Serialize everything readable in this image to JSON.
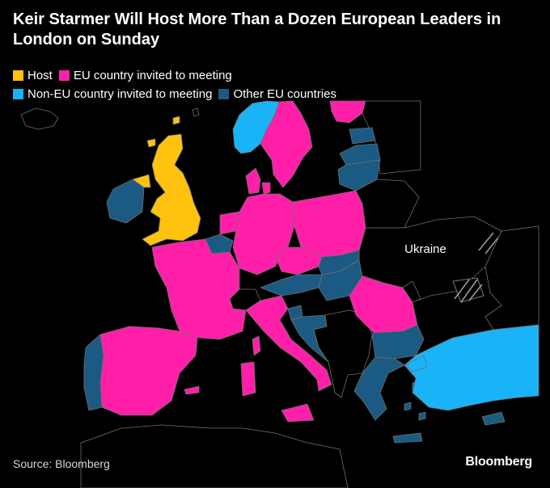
{
  "title": "Keir Starmer Will Host More Than a Dozen European Leaders in London on Sunday",
  "legend": [
    {
      "label": "Host",
      "color": "#ffc20e"
    },
    {
      "label": "EU country invited to meeting",
      "color": "#ff1fa8"
    },
    {
      "label": "Non-EU country invited to meeting",
      "color": "#18b4f7"
    },
    {
      "label": "Other EU countries",
      "color": "#1b5a82"
    }
  ],
  "map_label": "Ukraine",
  "source": "Source: Bloomberg",
  "brand": "Bloomberg",
  "colors": {
    "background": "#000000",
    "border": "#6f6f6f",
    "non_eu_other": "#000000"
  }
}
